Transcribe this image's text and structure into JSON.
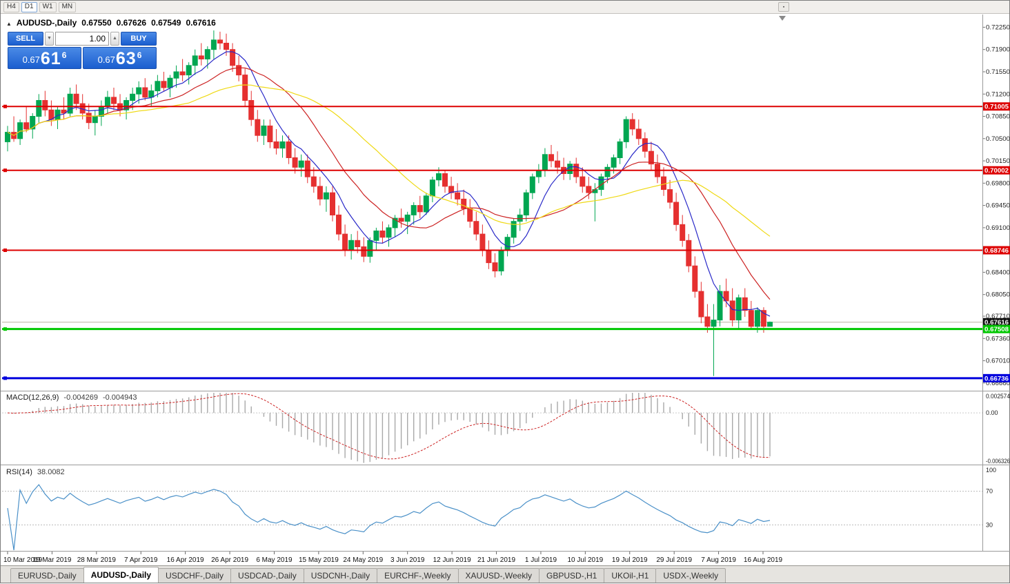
{
  "toolbar": {
    "timeframes": [
      "H4",
      "D1",
      "W1",
      "MN"
    ],
    "active_timeframe": "D1"
  },
  "icons": {
    "chart_title": "▲",
    "spin_down": "▼",
    "spin_up": "▲",
    "toolbar_more": "▪"
  },
  "chart": {
    "title": "AUDUSD-,Daily",
    "ohlc": {
      "open": "0.67550",
      "high": "0.67626",
      "low": "0.67549",
      "close": "0.67616"
    }
  },
  "trade_panel": {
    "sell_label": "SELL",
    "buy_label": "BUY",
    "volume": "1.00",
    "sell_price": {
      "prefix": "0.67",
      "big": "61",
      "sup": "6"
    },
    "buy_price": {
      "prefix": "0.67",
      "big": "63",
      "sup": "6"
    }
  },
  "price_axis": {
    "ticks": [
      "0.72250",
      "0.71900",
      "0.71550",
      "0.71200",
      "0.70850",
      "0.70500",
      "0.70150",
      "0.69800",
      "0.69450",
      "0.69100",
      "0.68750",
      "0.68400",
      "0.68050",
      "0.67710",
      "0.67360",
      "0.67010",
      "0.66660"
    ]
  },
  "time_axis": {
    "labels": [
      "10 Mar 2019",
      "19 Mar 2019",
      "28 Mar 2019",
      "7 Apr 2019",
      "16 Apr 2019",
      "26 Apr 2019",
      "6 May 2019",
      "15 May 2019",
      "24 May 2019",
      "3 Jun 2019",
      "12 Jun 2019",
      "21 Jun 2019",
      "1 Jul 2019",
      "10 Jul 2019",
      "19 Jul 2019",
      "29 Jul 2019",
      "7 Aug 2019",
      "16 Aug 2019"
    ]
  },
  "levels": [
    {
      "price": 0.71005,
      "label": "0.71005",
      "color": "#dd0000",
      "width": 2
    },
    {
      "price": 0.70002,
      "label": "0.70002",
      "color": "#dd0000",
      "width": 2
    },
    {
      "price": 0.68746,
      "label": "0.68746",
      "color": "#dd0000",
      "width": 2
    },
    {
      "price": 0.67508,
      "label": "0.67508",
      "color": "#00c800",
      "width": 3
    },
    {
      "price": 0.66736,
      "label": "0.66736",
      "color": "#0000dd",
      "width": 3
    }
  ],
  "current_price": {
    "value": 0.67616,
    "label": "0.67616",
    "badge_color": "#111111",
    "line_color": "#b8b2a0"
  },
  "macd": {
    "label": "MACD(12,26,9)",
    "value_main": "-0.004269",
    "value_signal": "-0.004943",
    "fast": 12,
    "slow": 26,
    "signal": 9,
    "axis_max": 0.002574,
    "axis_min": -0.006326,
    "axis_max_label": "0.002574",
    "axis_zero_label": "0.00",
    "axis_min_label": "-0.006326",
    "histogram_color": "#a8a8a8",
    "signal_color": "#cc2222"
  },
  "rsi": {
    "label": "RSI(14)",
    "value": "38.0082",
    "period": 14,
    "levels": [
      70,
      30
    ],
    "axis_labels": [
      "100",
      "70",
      "30"
    ],
    "line_color": "#4a90c8"
  },
  "tabs": {
    "active_index": 1,
    "items": [
      "EURUSD-,Daily",
      "AUDUSD-,Daily",
      "USDCHF-,Daily",
      "USDCAD-,Daily",
      "USDCNH-,Daily",
      "EURCHF-,Weekly",
      "XAUUSD-,Weekly",
      "GBPUSD-,H1",
      "UKOil-,H1",
      "USDX-,Weekly"
    ]
  },
  "chart_data": {
    "type": "candlestick",
    "symbol": "AUDUSD-",
    "timeframe": "Daily",
    "y_range": [
      0.6655,
      0.7245
    ],
    "up_color": "#00a651",
    "down_color": "#e53030",
    "moving_averages": [
      {
        "period": 7,
        "color": "#2929c8"
      },
      {
        "period": 16,
        "color": "#cc2222"
      },
      {
        "period": 30,
        "color": "#efd913"
      }
    ],
    "candles": [
      [
        0.7045,
        0.707,
        0.703,
        0.706
      ],
      [
        0.706,
        0.7085,
        0.7045,
        0.705
      ],
      [
        0.705,
        0.708,
        0.704,
        0.7075
      ],
      [
        0.7075,
        0.71,
        0.706,
        0.7065
      ],
      [
        0.7065,
        0.709,
        0.705,
        0.7085
      ],
      [
        0.7085,
        0.712,
        0.7075,
        0.711
      ],
      [
        0.711,
        0.7125,
        0.7085,
        0.7095
      ],
      [
        0.7095,
        0.711,
        0.707,
        0.708
      ],
      [
        0.708,
        0.71,
        0.7065,
        0.7095
      ],
      [
        0.7095,
        0.7115,
        0.708,
        0.709
      ],
      [
        0.709,
        0.713,
        0.7085,
        0.712
      ],
      [
        0.712,
        0.7135,
        0.7095,
        0.7105
      ],
      [
        0.7105,
        0.712,
        0.708,
        0.709
      ],
      [
        0.709,
        0.7105,
        0.7065,
        0.7075
      ],
      [
        0.7075,
        0.7095,
        0.7055,
        0.7085
      ],
      [
        0.7085,
        0.711,
        0.707,
        0.71
      ],
      [
        0.71,
        0.7125,
        0.709,
        0.7115
      ],
      [
        0.7115,
        0.713,
        0.7095,
        0.7105
      ],
      [
        0.7105,
        0.712,
        0.7085,
        0.7095
      ],
      [
        0.7095,
        0.7115,
        0.708,
        0.711
      ],
      [
        0.711,
        0.713,
        0.7095,
        0.712
      ],
      [
        0.712,
        0.714,
        0.7105,
        0.713
      ],
      [
        0.713,
        0.7145,
        0.711,
        0.7115
      ],
      [
        0.7115,
        0.7135,
        0.71,
        0.7125
      ],
      [
        0.7125,
        0.715,
        0.7115,
        0.714
      ],
      [
        0.714,
        0.7155,
        0.7125,
        0.713
      ],
      [
        0.713,
        0.715,
        0.7115,
        0.7145
      ],
      [
        0.7145,
        0.7165,
        0.713,
        0.7155
      ],
      [
        0.7155,
        0.7175,
        0.714,
        0.715
      ],
      [
        0.715,
        0.717,
        0.7135,
        0.7165
      ],
      [
        0.7165,
        0.719,
        0.715,
        0.718
      ],
      [
        0.718,
        0.72,
        0.7165,
        0.7175
      ],
      [
        0.7175,
        0.7195,
        0.716,
        0.719
      ],
      [
        0.719,
        0.722,
        0.7175,
        0.7205
      ],
      [
        0.7205,
        0.7218,
        0.719,
        0.72
      ],
      [
        0.72,
        0.7215,
        0.718,
        0.719
      ],
      [
        0.719,
        0.72,
        0.7155,
        0.7165
      ],
      [
        0.7165,
        0.718,
        0.714,
        0.715
      ],
      [
        0.715,
        0.716,
        0.71,
        0.711
      ],
      [
        0.711,
        0.7125,
        0.707,
        0.708
      ],
      [
        0.708,
        0.7095,
        0.7045,
        0.7055
      ],
      [
        0.7055,
        0.708,
        0.704,
        0.707
      ],
      [
        0.707,
        0.708,
        0.7035,
        0.7045
      ],
      [
        0.7045,
        0.7065,
        0.7025,
        0.7035
      ],
      [
        0.7035,
        0.7055,
        0.702,
        0.7045
      ],
      [
        0.7045,
        0.7055,
        0.701,
        0.702
      ],
      [
        0.702,
        0.7035,
        0.6995,
        0.7005
      ],
      [
        0.7005,
        0.7025,
        0.699,
        0.7015
      ],
      [
        0.7015,
        0.7025,
        0.698,
        0.699
      ],
      [
        0.699,
        0.7005,
        0.6965,
        0.6975
      ],
      [
        0.6975,
        0.699,
        0.6945,
        0.6955
      ],
      [
        0.6955,
        0.6975,
        0.6935,
        0.6965
      ],
      [
        0.6965,
        0.6975,
        0.692,
        0.693
      ],
      [
        0.693,
        0.6945,
        0.689,
        0.69
      ],
      [
        0.69,
        0.6915,
        0.6865,
        0.6875
      ],
      [
        0.6875,
        0.69,
        0.686,
        0.689
      ],
      [
        0.689,
        0.6905,
        0.687,
        0.688
      ],
      [
        0.688,
        0.6895,
        0.6856,
        0.6865
      ],
      [
        0.6865,
        0.6895,
        0.6855,
        0.689
      ],
      [
        0.689,
        0.691,
        0.6875,
        0.6905
      ],
      [
        0.6905,
        0.692,
        0.6885,
        0.6895
      ],
      [
        0.6895,
        0.6915,
        0.688,
        0.691
      ],
      [
        0.691,
        0.693,
        0.6895,
        0.6925
      ],
      [
        0.6925,
        0.694,
        0.691,
        0.692
      ],
      [
        0.692,
        0.6935,
        0.69,
        0.693
      ],
      [
        0.693,
        0.695,
        0.6915,
        0.6945
      ],
      [
        0.6945,
        0.696,
        0.6925,
        0.6935
      ],
      [
        0.6935,
        0.6965,
        0.693,
        0.696
      ],
      [
        0.696,
        0.699,
        0.695,
        0.6985
      ],
      [
        0.6985,
        0.7005,
        0.6975,
        0.6995
      ],
      [
        0.6995,
        0.7,
        0.6965,
        0.6975
      ],
      [
        0.6975,
        0.699,
        0.6955,
        0.6965
      ],
      [
        0.6965,
        0.698,
        0.6945,
        0.6955
      ],
      [
        0.6955,
        0.697,
        0.693,
        0.694
      ],
      [
        0.694,
        0.6955,
        0.691,
        0.692
      ],
      [
        0.692,
        0.6935,
        0.689,
        0.69
      ],
      [
        0.69,
        0.6915,
        0.6865,
        0.6875
      ],
      [
        0.6875,
        0.689,
        0.6845,
        0.6855
      ],
      [
        0.6855,
        0.687,
        0.6832,
        0.6842
      ],
      [
        0.6842,
        0.688,
        0.6835,
        0.6875
      ],
      [
        0.6875,
        0.69,
        0.6865,
        0.6895
      ],
      [
        0.6895,
        0.6925,
        0.6885,
        0.692
      ],
      [
        0.692,
        0.694,
        0.6905,
        0.693
      ],
      [
        0.693,
        0.697,
        0.692,
        0.6965
      ],
      [
        0.6965,
        0.6995,
        0.6955,
        0.699
      ],
      [
        0.699,
        0.701,
        0.698,
        0.7
      ],
      [
        0.7,
        0.7035,
        0.699,
        0.7025
      ],
      [
        0.7025,
        0.704,
        0.7005,
        0.7015
      ],
      [
        0.7015,
        0.703,
        0.6995,
        0.7005
      ],
      [
        0.7005,
        0.702,
        0.6985,
        0.6995
      ],
      [
        0.6995,
        0.7015,
        0.6985,
        0.701
      ],
      [
        0.701,
        0.702,
        0.698,
        0.699
      ],
      [
        0.699,
        0.7005,
        0.6965,
        0.6975
      ],
      [
        0.6975,
        0.699,
        0.6955,
        0.6965
      ],
      [
        0.6965,
        0.698,
        0.692,
        0.697
      ],
      [
        0.697,
        0.6995,
        0.696,
        0.699
      ],
      [
        0.699,
        0.701,
        0.698,
        0.7005
      ],
      [
        0.7005,
        0.7025,
        0.6995,
        0.702
      ],
      [
        0.702,
        0.705,
        0.701,
        0.7045
      ],
      [
        0.7045,
        0.7085,
        0.7035,
        0.708
      ],
      [
        0.708,
        0.709,
        0.7055,
        0.7065
      ],
      [
        0.7065,
        0.708,
        0.704,
        0.705
      ],
      [
        0.705,
        0.706,
        0.702,
        0.703
      ],
      [
        0.703,
        0.7045,
        0.7,
        0.701
      ],
      [
        0.701,
        0.7025,
        0.698,
        0.699
      ],
      [
        0.699,
        0.7005,
        0.696,
        0.697
      ],
      [
        0.697,
        0.6985,
        0.694,
        0.695
      ],
      [
        0.695,
        0.6965,
        0.6905,
        0.6915
      ],
      [
        0.6915,
        0.693,
        0.688,
        0.689
      ],
      [
        0.689,
        0.69,
        0.684,
        0.685
      ],
      [
        0.685,
        0.6865,
        0.68,
        0.681
      ],
      [
        0.681,
        0.6825,
        0.676,
        0.677
      ],
      [
        0.677,
        0.679,
        0.6745,
        0.6755
      ],
      [
        0.6755,
        0.679,
        0.6677,
        0.6765
      ],
      [
        0.6765,
        0.682,
        0.6755,
        0.681
      ],
      [
        0.681,
        0.683,
        0.6785,
        0.6795
      ],
      [
        0.6795,
        0.6815,
        0.6755,
        0.6765
      ],
      [
        0.6765,
        0.6805,
        0.675,
        0.68
      ],
      [
        0.68,
        0.6815,
        0.677,
        0.678
      ],
      [
        0.678,
        0.6795,
        0.675,
        0.6755
      ],
      [
        0.6755,
        0.6785,
        0.6745,
        0.678
      ],
      [
        0.678,
        0.6785,
        0.6745,
        0.6755
      ],
      [
        0.6755,
        0.67626,
        0.67549,
        0.67616
      ]
    ]
  }
}
